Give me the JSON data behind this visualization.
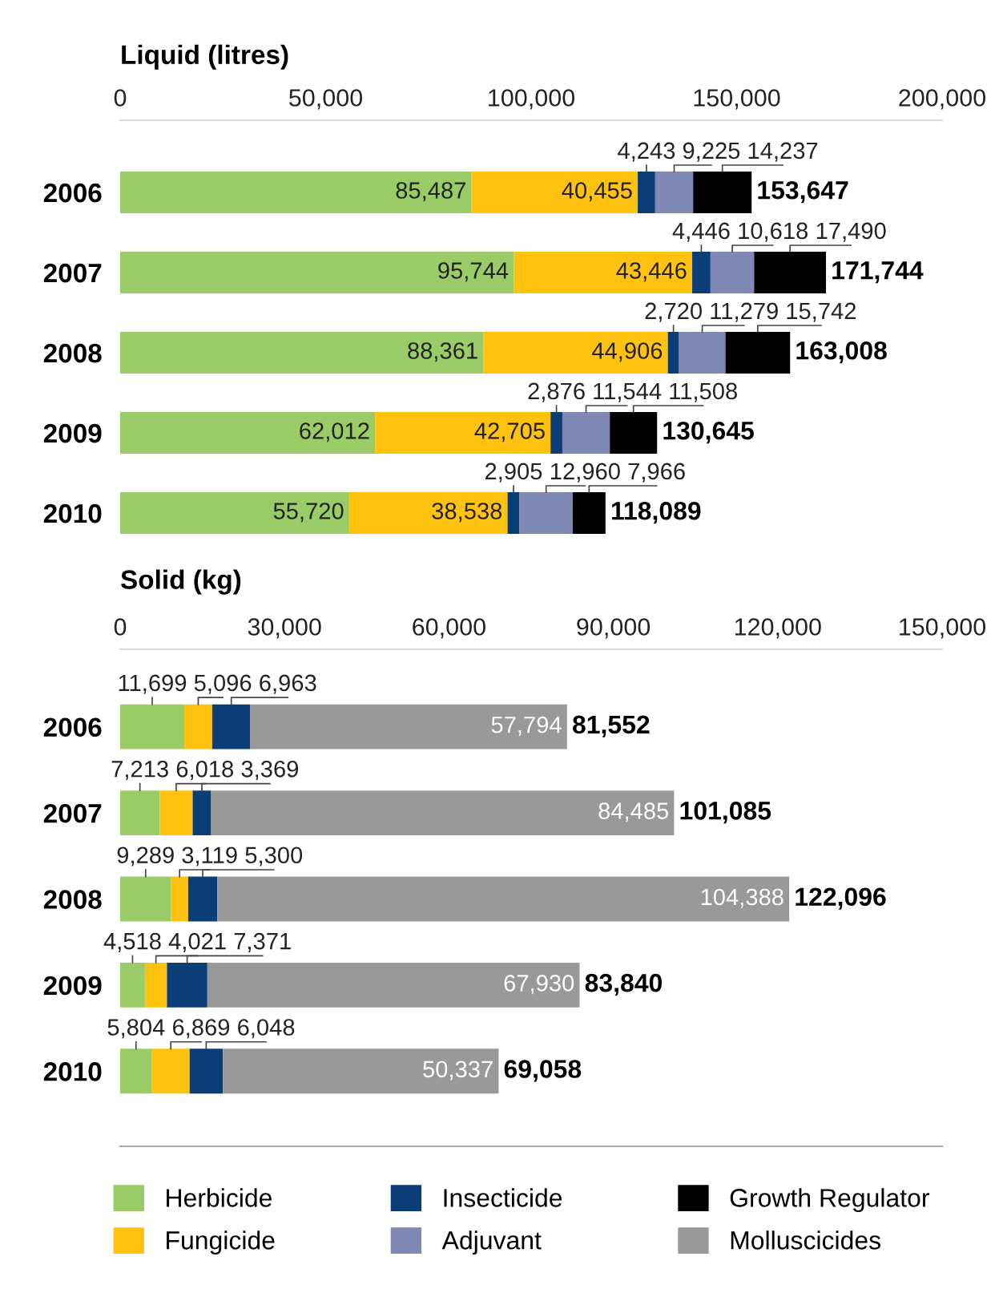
{
  "chart_data": [
    {
      "type": "bar",
      "orientation": "horizontal",
      "stacked": true,
      "xlabel": "Liquid (litres)",
      "categories": [
        "2006",
        "2007",
        "2008",
        "2009",
        "2010"
      ],
      "xlim": [
        0,
        200000
      ],
      "xticks": [
        {
          "value": 0,
          "label": "0"
        },
        {
          "value": 50000,
          "label": "50,000"
        },
        {
          "value": 100000,
          "label": "100,000"
        },
        {
          "value": 150000,
          "label": "150,000"
        },
        {
          "value": 200000,
          "label": "200,000"
        }
      ],
      "series": [
        {
          "name": "Herbicide",
          "color": "#99cc66",
          "values": [
            85487,
            95744,
            88361,
            62012,
            55720
          ],
          "value_labels": [
            "85,487",
            "95,744",
            "88,361",
            "62,012",
            "55,720"
          ]
        },
        {
          "name": "Fungicide",
          "color": "#ffc20e",
          "values": [
            40455,
            43446,
            44906,
            42705,
            38538
          ],
          "value_labels": [
            "40,455",
            "43,446",
            "44,906",
            "42,705",
            "38,538"
          ]
        },
        {
          "name": "Insecticide",
          "color": "#0b3d77",
          "values": [
            4243,
            4446,
            2720,
            2876,
            2905
          ],
          "value_labels": [
            "4,243",
            "4,446",
            "2,720",
            "2,876",
            "2,905"
          ]
        },
        {
          "name": "Adjuvant",
          "color": "#8088b4",
          "values": [
            9225,
            10618,
            11279,
            11544,
            12960
          ],
          "value_labels": [
            "9,225",
            "10,618",
            "11,279",
            "11,544",
            "12,960"
          ]
        },
        {
          "name": "Growth Regulator",
          "color": "#000000",
          "values": [
            14237,
            17490,
            15742,
            11508,
            7966
          ],
          "value_labels": [
            "14,237",
            "17,490",
            "15,742",
            "11,508",
            "7,966"
          ]
        }
      ],
      "totals": [
        "153,647",
        "171,744",
        "163,008",
        "130,645",
        "118,089"
      ],
      "grid": false,
      "legend": "bottom"
    },
    {
      "type": "bar",
      "orientation": "horizontal",
      "stacked": true,
      "xlabel": "Solid (kg)",
      "categories": [
        "2006",
        "2007",
        "2008",
        "2009",
        "2010"
      ],
      "xlim": [
        0,
        150000
      ],
      "xticks": [
        {
          "value": 0,
          "label": "0"
        },
        {
          "value": 30000,
          "label": "30,000"
        },
        {
          "value": 60000,
          "label": "60,000"
        },
        {
          "value": 90000,
          "label": "90,000"
        },
        {
          "value": 120000,
          "label": "120,000"
        },
        {
          "value": 150000,
          "label": "150,000"
        }
      ],
      "series": [
        {
          "name": "Herbicide",
          "color": "#99cc66",
          "values": [
            11699,
            7213,
            9289,
            4518,
            5804
          ],
          "value_labels": [
            "11,699",
            "7,213",
            "9,289",
            "4,518",
            "5,804"
          ]
        },
        {
          "name": "Fungicide",
          "color": "#ffc20e",
          "values": [
            5096,
            6018,
            3119,
            4021,
            6869
          ],
          "value_labels": [
            "5,096",
            "6,018",
            "3,119",
            "4,021",
            "6,869"
          ]
        },
        {
          "name": "Insecticide",
          "color": "#0b3d77",
          "values": [
            6963,
            3369,
            5300,
            7371,
            6048
          ],
          "value_labels": [
            "6,963",
            "3,369",
            "5,300",
            "7,371",
            "6,048"
          ]
        },
        {
          "name": "Molluscicides",
          "color": "#999999",
          "values": [
            57794,
            84485,
            104388,
            67930,
            50337
          ],
          "value_labels": [
            "57,794",
            "84,485",
            "104,388",
            "67,930",
            "50,337"
          ]
        }
      ],
      "totals": [
        "81,552",
        "101,085",
        "122,096",
        "83,840",
        "69,058"
      ],
      "grid": false,
      "legend": "bottom"
    }
  ]
}
